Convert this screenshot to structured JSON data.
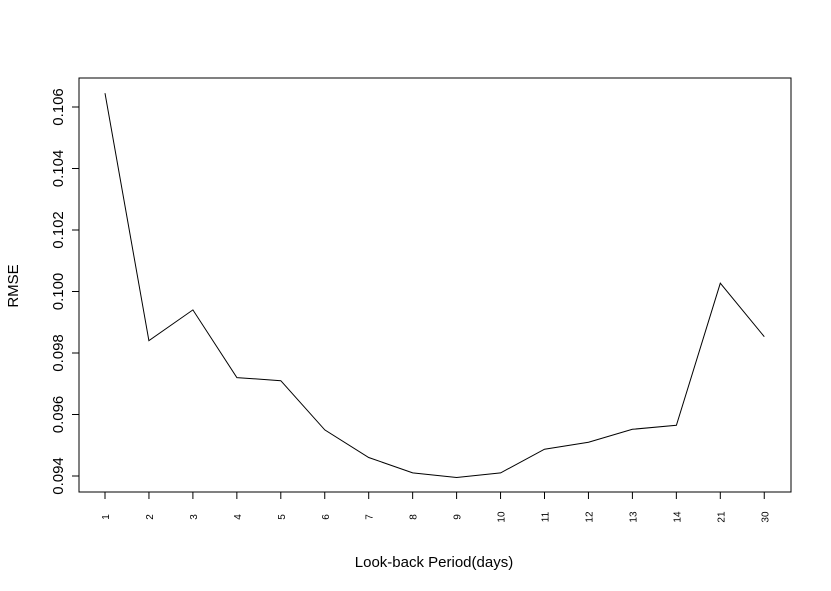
{
  "chart_data": {
    "type": "line",
    "categories": [
      "1",
      "2",
      "3",
      "4",
      "5",
      "6",
      "7",
      "8",
      "9",
      "10",
      "11",
      "12",
      "13",
      "14",
      "21",
      "30"
    ],
    "values": [
      0.10645,
      0.0984,
      0.0994,
      0.0972,
      0.0971,
      0.0955,
      0.0946,
      0.0941,
      0.09395,
      0.0941,
      0.09487,
      0.0951,
      0.09552,
      0.09565,
      0.10027,
      0.09853
    ],
    "title": "",
    "xlabel": "Look-back Period(days)",
    "ylabel": "RMSE",
    "yticks": [
      "0.094",
      "0.096",
      "0.098",
      "0.100",
      "0.102",
      "0.104",
      "0.106"
    ],
    "ylim": [
      0.0933,
      0.107
    ],
    "grid": false,
    "color": "#000000"
  }
}
